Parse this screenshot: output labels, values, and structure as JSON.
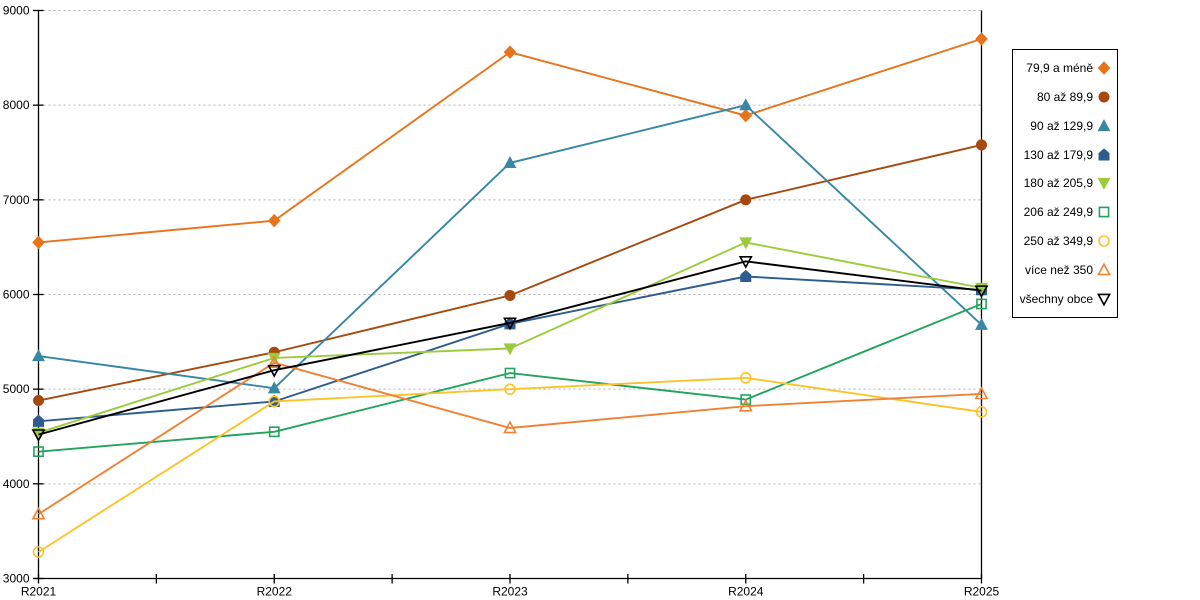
{
  "chart_data": {
    "type": "line",
    "categories": [
      "R2021",
      "R2022",
      "R2023",
      "R2024",
      "R2025"
    ],
    "series": [
      {
        "name": "79,9 a méně",
        "color": "#E8731A",
        "marker": "diamond",
        "fill": "filled",
        "values": [
          6550,
          6780,
          8560,
          7890,
          8700
        ]
      },
      {
        "name": "80 až 89,9",
        "color": "#A6490F",
        "marker": "circle",
        "fill": "filled",
        "values": [
          4880,
          5390,
          5990,
          7000,
          7580
        ]
      },
      {
        "name": "90 až 129,9",
        "color": "#3787A5",
        "marker": "triangle-up",
        "fill": "filled",
        "values": [
          5350,
          5010,
          7390,
          8000,
          5680
        ]
      },
      {
        "name": "130 až 179,9",
        "color": "#2E5C8F",
        "marker": "pentagon",
        "fill": "filled",
        "values": [
          4660,
          4870,
          5690,
          6190,
          6050
        ]
      },
      {
        "name": "180 až 205,9",
        "color": "#9CCB3B",
        "marker": "triangle-down",
        "fill": "filled",
        "values": [
          4540,
          5330,
          5430,
          6550,
          6070
        ]
      },
      {
        "name": "206 až 249,9",
        "color": "#22A45C",
        "marker": "square",
        "fill": "open",
        "values": [
          4340,
          4550,
          5170,
          4890,
          5900
        ]
      },
      {
        "name": "250 až 349,9",
        "color": "#FBC32A",
        "marker": "circle",
        "fill": "open",
        "values": [
          3280,
          4870,
          5000,
          5120,
          4760
        ]
      },
      {
        "name": "více než 350",
        "color": "#EF8232",
        "marker": "triangle-up",
        "fill": "open",
        "values": [
          3680,
          5280,
          4590,
          4820,
          4950
        ]
      },
      {
        "name": "všechny obce",
        "color": "#000000",
        "marker": "triangle-down",
        "fill": "open",
        "values": [
          4520,
          5200,
          5700,
          6350,
          6040
        ]
      }
    ],
    "ylim": [
      3000,
      9000
    ],
    "ytick_step": 1000,
    "y_tick_labels": [
      "3000",
      "4000",
      "5000",
      "6000",
      "7000",
      "8000",
      "9000"
    ],
    "x_tick_labels": [
      "R2021",
      "R2022",
      "R2023",
      "R2024",
      "R2025"
    ],
    "grid": "horizontal-dashed",
    "legend_position": "right",
    "title": "",
    "xlabel": "",
    "ylabel": ""
  },
  "layout_colors": {
    "gridline": "#B3B3B3",
    "axis": "#000000",
    "background": "#FFFFFF"
  }
}
